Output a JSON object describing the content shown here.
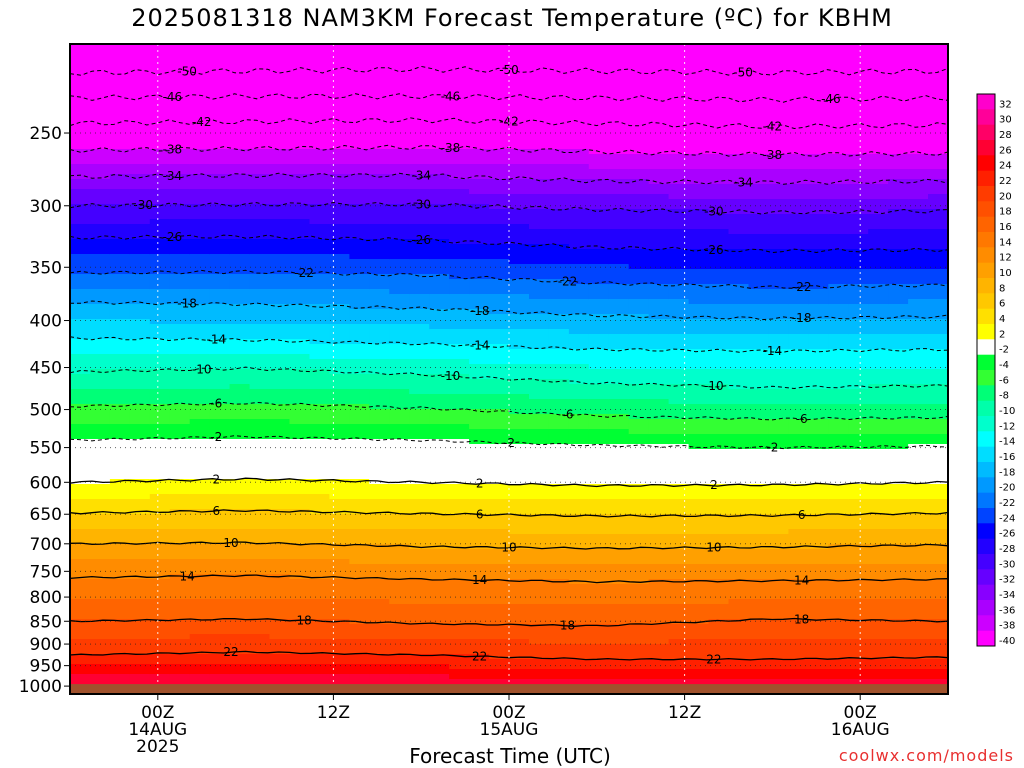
{
  "title": "2025081318 NAM3KM Forecast Temperature (ºC) for KBHM",
  "credit": "coolwx.com/models",
  "chart_data": {
    "type": "heatmap",
    "title": "2025081318 NAM3KM Forecast Temperature (ºC) for KBHM",
    "xlabel": "Forecast Time (UTC)",
    "ylabel": "",
    "y_axis": {
      "scale": "log",
      "ticks": [
        250,
        300,
        350,
        400,
        450,
        500,
        550,
        600,
        650,
        700,
        750,
        800,
        850,
        900,
        950,
        1000
      ],
      "range": [
        200,
        1020
      ]
    },
    "x_axis": {
      "range_hours": [
        -6,
        54
      ],
      "ticks": [
        {
          "hour": 0,
          "lines": [
            "00Z",
            "14AUG",
            "2025"
          ]
        },
        {
          "hour": 12,
          "lines": [
            "12Z"
          ]
        },
        {
          "hour": 24,
          "lines": [
            "00Z",
            "15AUG"
          ]
        },
        {
          "hour": 36,
          "lines": [
            "12Z"
          ]
        },
        {
          "hour": 48,
          "lines": [
            "00Z",
            "16AUG"
          ]
        }
      ]
    },
    "grid": "dotted",
    "colorbar": {
      "labels": [
        32,
        30,
        28,
        26,
        24,
        22,
        20,
        18,
        16,
        14,
        12,
        10,
        8,
        6,
        4,
        2,
        -2,
        -4,
        -6,
        -8,
        -10,
        -12,
        -14,
        -16,
        -18,
        -20,
        -22,
        -24,
        -26,
        -28,
        -30,
        -32,
        -34,
        -36,
        -38,
        -40
      ],
      "colors": [
        "#ff00cc",
        "#ff0099",
        "#ff0066",
        "#ff0033",
        "#ff0000",
        "#ff2000",
        "#ff3c00",
        "#ff5000",
        "#ff6400",
        "#ff7800",
        "#ff8c00",
        "#ffa000",
        "#ffb400",
        "#ffc800",
        "#ffe000",
        "#ffff00",
        "#ffffff",
        "#00ff33",
        "#33ff33",
        "#00ff77",
        "#00ffaa",
        "#00ffcc",
        "#00ffff",
        "#00ddff",
        "#00bbff",
        "#0099ff",
        "#0077ff",
        "#0044ff",
        "#0000ff",
        "#2200ff",
        "#4400ff",
        "#6600ff",
        "#8800ff",
        "#aa00ff",
        "#cc00ff",
        "#ff00ff"
      ],
      "placement": "right"
    },
    "contours": [
      {
        "value": -50,
        "pressure": [
          215,
          214,
          213,
          214,
          215,
          214
        ]
      },
      {
        "value": -46,
        "pressure": [
          229,
          228,
          228,
          229,
          230,
          229
        ]
      },
      {
        "value": -42,
        "pressure": [
          244,
          243,
          242,
          244,
          246,
          245
        ]
      },
      {
        "value": -38,
        "pressure": [
          261,
          260,
          259,
          262,
          264,
          263
        ]
      },
      {
        "value": -34,
        "pressure": [
          279,
          278,
          278,
          282,
          283,
          282
        ]
      },
      {
        "value": -30,
        "pressure": [
          300,
          299,
          299,
          303,
          305,
          304
        ]
      },
      {
        "value": -26,
        "pressure": [
          325,
          324,
          327,
          333,
          336,
          335
        ]
      },
      {
        "value": -22,
        "pressure": [
          355,
          354,
          357,
          364,
          368,
          366
        ]
      },
      {
        "value": -18,
        "pressure": [
          382,
          384,
          388,
          395,
          398,
          396
        ]
      },
      {
        "value": -14,
        "pressure": [
          418,
          420,
          424,
          430,
          432,
          430
        ]
      },
      {
        "value": -10,
        "pressure": [
          455,
          451,
          458,
          468,
          473,
          471
        ]
      },
      {
        "value": -6,
        "pressure": [
          496,
          492,
          498,
          508,
          512,
          510
        ]
      },
      {
        "value": -2,
        "pressure": [
          540,
          535,
          540,
          547,
          550,
          548
        ]
      },
      {
        "value": 2,
        "pressure": [
          600,
          595,
          600,
          605,
          604,
          600
        ]
      },
      {
        "value": 6,
        "pressure": [
          648,
          644,
          649,
          653,
          652,
          648
        ]
      },
      {
        "value": 10,
        "pressure": [
          700,
          698,
          705,
          708,
          706,
          702
        ]
      },
      {
        "value": 14,
        "pressure": [
          762,
          758,
          765,
          770,
          768,
          765
        ]
      },
      {
        "value": 18,
        "pressure": [
          850,
          845,
          855,
          860,
          845,
          850
        ]
      },
      {
        "value": 22,
        "pressure": [
          925,
          918,
          925,
          935,
          935,
          930
        ]
      }
    ],
    "contour_label_hours": [
      {
        "value": -50,
        "hours": [
          2,
          24,
          40
        ]
      },
      {
        "value": -46,
        "hours": [
          1,
          20,
          46
        ]
      },
      {
        "value": -42,
        "hours": [
          3,
          24,
          42
        ]
      },
      {
        "value": -38,
        "hours": [
          1,
          20,
          42
        ]
      },
      {
        "value": -34,
        "hours": [
          1,
          18,
          40
        ]
      },
      {
        "value": -30,
        "hours": [
          -1,
          18,
          38
        ]
      },
      {
        "value": -26,
        "hours": [
          1,
          18,
          38
        ]
      },
      {
        "value": -22,
        "hours": [
          10,
          28,
          44
        ]
      },
      {
        "value": -18,
        "hours": [
          2,
          22,
          44
        ]
      },
      {
        "value": -14,
        "hours": [
          4,
          22,
          42
        ]
      },
      {
        "value": -10,
        "hours": [
          3,
          20,
          38
        ]
      },
      {
        "value": -6,
        "hours": [
          4,
          28,
          44
        ]
      },
      {
        "value": -2,
        "hours": [
          4,
          24,
          42
        ]
      },
      {
        "value": 2,
        "hours": [
          4,
          22,
          38
        ]
      },
      {
        "value": 6,
        "hours": [
          4,
          22,
          44
        ]
      },
      {
        "value": 10,
        "hours": [
          5,
          24,
          38
        ]
      },
      {
        "value": 14,
        "hours": [
          2,
          22,
          44
        ]
      },
      {
        "value": 18,
        "hours": [
          10,
          28,
          44
        ]
      },
      {
        "value": 22,
        "hours": [
          5,
          22,
          38
        ]
      }
    ]
  }
}
